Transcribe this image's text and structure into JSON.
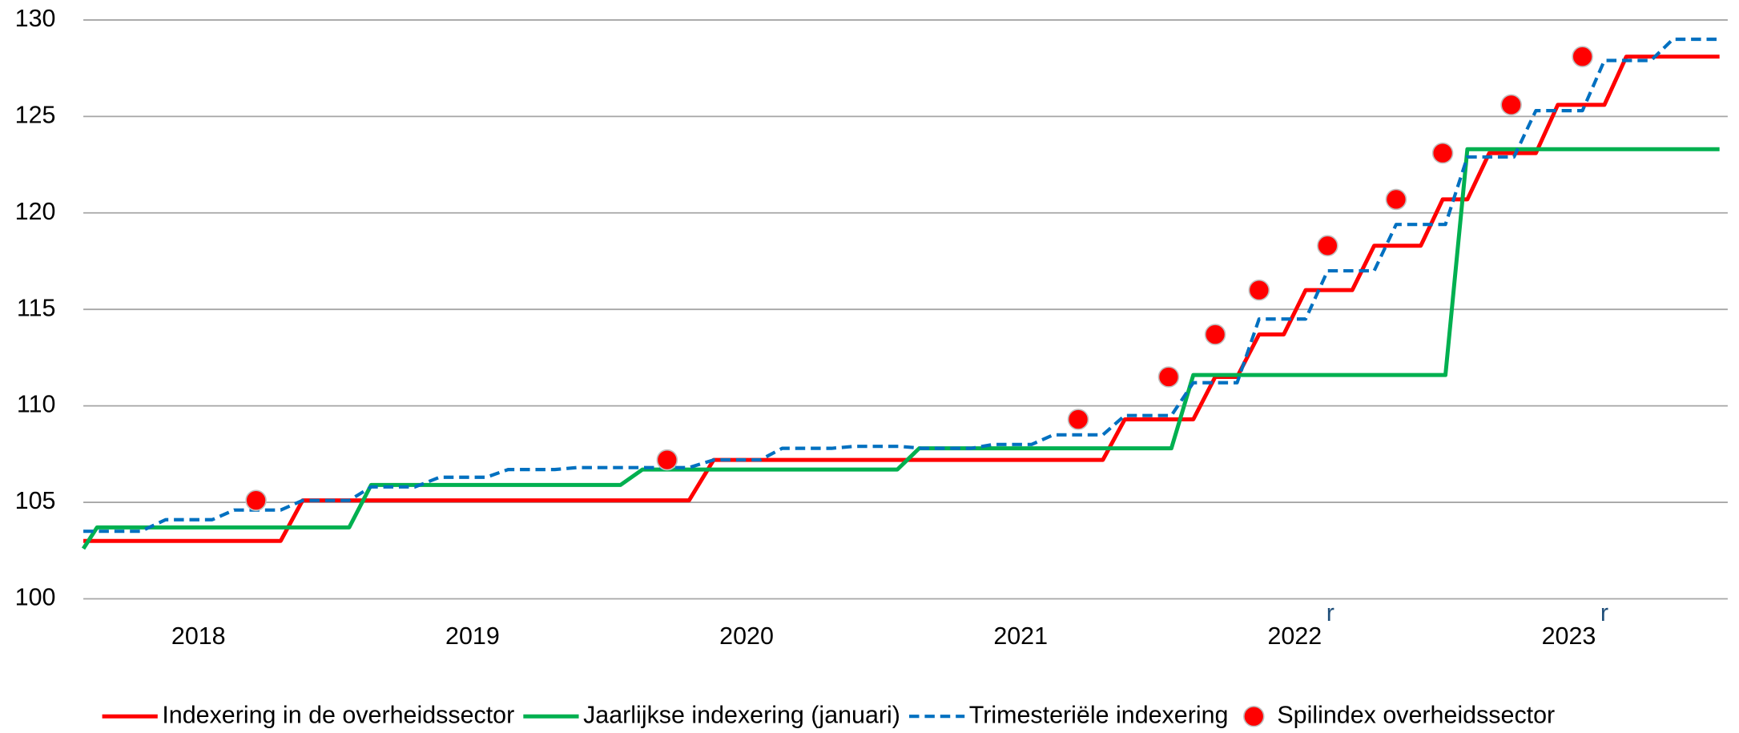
{
  "chart_data": {
    "type": "line",
    "xlim": [
      2018.08,
      2024.08
    ],
    "ylim": [
      100,
      130
    ],
    "yticks": [
      100,
      105,
      110,
      115,
      120,
      125,
      130
    ],
    "xticks": [
      {
        "value": 2018.5,
        "label": "2018"
      },
      {
        "value": 2019.5,
        "label": "2019"
      },
      {
        "value": 2020.5,
        "label": "2020"
      },
      {
        "value": 2021.5,
        "label": "2021"
      },
      {
        "value": 2022.5,
        "label": "2022",
        "note": "r"
      },
      {
        "value": 2023.5,
        "label": "2023",
        "note": "r"
      }
    ],
    "grid": true,
    "legend": "bottom",
    "series": [
      {
        "name": "Indexering in de overheidssector",
        "color": "#ff0000",
        "style": "solid",
        "x": [
          2018.08,
          2018.8,
          2018.88,
          2020.29,
          2020.38,
          2021.8,
          2021.88,
          2022.13,
          2022.21,
          2022.29,
          2022.37,
          2022.46,
          2022.54,
          2022.71,
          2022.79,
          2022.96,
          2023.04,
          2023.13,
          2023.21,
          2023.38,
          2023.46,
          2023.63,
          2023.71,
          2024.05
        ],
        "values": [
          103.0,
          103.0,
          105.1,
          105.1,
          107.2,
          107.2,
          109.3,
          109.3,
          111.5,
          111.5,
          113.7,
          113.7,
          116.0,
          116.0,
          118.3,
          118.3,
          120.7,
          120.7,
          123.1,
          123.1,
          125.6,
          125.6,
          128.1,
          128.1
        ]
      },
      {
        "name": "Jaarlijkse indexering (januari)",
        "color": "#00b050",
        "style": "solid",
        "x": [
          2018.08,
          2018.13,
          2019.05,
          2019.13,
          2020.04,
          2020.12,
          2021.05,
          2021.13,
          2022.05,
          2022.13,
          2023.05,
          2023.13,
          2024.05
        ],
        "values": [
          102.6,
          103.7,
          103.7,
          105.9,
          105.9,
          106.7,
          106.7,
          107.8,
          107.8,
          111.6,
          111.6,
          123.3,
          123.3
        ]
      },
      {
        "name": "Trimesteriële indexering",
        "color": "#0070c0",
        "style": "dashed",
        "x": [
          2018.08,
          2018.29,
          2018.38,
          2018.55,
          2018.63,
          2018.8,
          2018.88,
          2019.05,
          2019.13,
          2019.29,
          2019.38,
          2019.55,
          2019.63,
          2019.8,
          2019.88,
          2020.29,
          2020.38,
          2020.55,
          2020.63,
          2020.81,
          2020.89,
          2021.06,
          2021.14,
          2021.32,
          2021.4,
          2021.54,
          2021.62,
          2021.8,
          2021.88,
          2022.05,
          2022.13,
          2022.29,
          2022.37,
          2022.54,
          2022.62,
          2022.79,
          2022.87,
          2023.05,
          2023.13,
          2023.3,
          2023.38,
          2023.55,
          2023.63,
          2023.8,
          2023.88,
          2024.05
        ],
        "values": [
          103.5,
          103.5,
          104.1,
          104.1,
          104.6,
          104.6,
          105.1,
          105.1,
          105.8,
          105.8,
          106.3,
          106.3,
          106.7,
          106.7,
          106.8,
          106.8,
          107.2,
          107.2,
          107.8,
          107.8,
          107.9,
          107.9,
          107.8,
          107.8,
          108.0,
          108.0,
          108.5,
          108.5,
          109.5,
          109.5,
          111.2,
          111.2,
          114.5,
          114.5,
          117.0,
          117.0,
          119.4,
          119.4,
          122.9,
          122.9,
          125.3,
          125.3,
          127.9,
          127.9,
          129.0,
          129.0
        ]
      },
      {
        "name": "Spilindex overheidssector",
        "color": "#ff0000",
        "style": "marker",
        "x": [
          2018.71,
          2020.21,
          2021.71,
          2022.04,
          2022.21,
          2022.37,
          2022.62,
          2022.87,
          2023.04,
          2023.29,
          2023.55
        ],
        "values": [
          105.1,
          107.2,
          109.3,
          111.5,
          113.7,
          116.0,
          118.3,
          120.7,
          123.1,
          125.6,
          128.1
        ]
      }
    ]
  }
}
